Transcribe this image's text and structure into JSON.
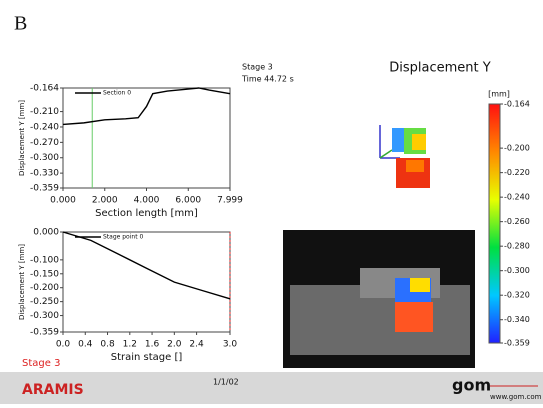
{
  "panel_label": "B",
  "header": {
    "stage": "Stage 3",
    "time": "Time  44.72 s"
  },
  "footer": {
    "brand": "ARAMIS",
    "date": "1/1/02",
    "logo": "gom",
    "url": "www.gom.com"
  },
  "chart_data": [
    {
      "type": "line",
      "y_label": "Displacement Y [mm]",
      "x_label": "Section length [mm]",
      "x": [
        0,
        1,
        2,
        3,
        3.6,
        4.0,
        4.3,
        5.0,
        6.0,
        6.5,
        7.0,
        7.999
      ],
      "series": [
        {
          "name": "Section 0",
          "color": "#000000",
          "values": [
            -0.235,
            -0.232,
            -0.226,
            -0.224,
            -0.222,
            -0.2,
            -0.175,
            -0.17,
            -0.166,
            -0.164,
            -0.168,
            -0.175
          ]
        }
      ],
      "marker_x": 1.4,
      "marker_color": "#66cc66",
      "xlim": [
        0,
        7.999
      ],
      "ylim": [
        -0.359,
        -0.164
      ],
      "xticks": [
        {
          "value": 0,
          "label": "0.000"
        },
        {
          "value": 2,
          "label": "2.000"
        },
        {
          "value": 4,
          "label": "4.000"
        },
        {
          "value": 6,
          "label": "6.000"
        },
        7.999
      ],
      "yticks": [
        -0.164,
        {
          "value": -0.21,
          "label": "-0.210"
        },
        {
          "value": -0.24,
          "label": "-0.240"
        },
        {
          "value": -0.27,
          "label": "-0.270"
        },
        {
          "value": -0.3,
          "label": "-0.300"
        },
        {
          "value": -0.33,
          "label": "-0.330"
        },
        -0.359
      ]
    },
    {
      "type": "line",
      "y_label": "Displacement Y [mm]",
      "x_label": "Strain stage []",
      "x": [
        0,
        0.5,
        1.0,
        1.5,
        2.0,
        2.5,
        3.0
      ],
      "series": [
        {
          "name": "Stage point 0",
          "color": "#000000",
          "values": [
            0,
            -0.03,
            -0.08,
            -0.13,
            -0.18,
            -0.21,
            -0.24
          ]
        }
      ],
      "marker_x": 3.0,
      "marker_color": "#dd2222",
      "marker_label": "Stage 3",
      "xlim": [
        0,
        3
      ],
      "ylim": [
        -0.359,
        0
      ],
      "xticks": [
        {
          "value": 0,
          "label": "0.0"
        },
        0.4,
        0.8,
        1.2,
        1.6,
        {
          "value": 2,
          "label": "2.0"
        },
        2.4,
        {
          "value": 3,
          "label": "3.0"
        }
      ],
      "yticks": [
        {
          "value": 0,
          "label": "0.000"
        },
        {
          "value": -0.1,
          "label": "-0.100"
        },
        {
          "value": -0.15,
          "label": "-0.150"
        },
        {
          "value": -0.2,
          "label": "-0.200"
        },
        {
          "value": -0.25,
          "label": "-0.250"
        },
        {
          "value": -0.3,
          "label": "-0.300"
        },
        -0.359
      ]
    },
    {
      "type": "colorbar",
      "title": "Displacement Y",
      "unit": "[mm]",
      "colors": [
        "#2020ff",
        "#00c8ff",
        "#00e040",
        "#e8ff00",
        "#ff8800",
        "#ff1010"
      ],
      "ylim": [
        -0.359,
        -0.164
      ],
      "yticks": [
        -0.164,
        {
          "value": -0.2,
          "label": "-0.200"
        },
        {
          "value": -0.22,
          "label": "-0.220"
        },
        {
          "value": -0.24,
          "label": "-0.240"
        },
        {
          "value": -0.26,
          "label": "-0.260"
        },
        {
          "value": -0.28,
          "label": "-0.280"
        },
        {
          "value": -0.3,
          "label": "-0.300"
        },
        {
          "value": -0.32,
          "label": "-0.320"
        },
        {
          "value": -0.34,
          "label": "-0.340"
        },
        -0.359
      ]
    }
  ]
}
